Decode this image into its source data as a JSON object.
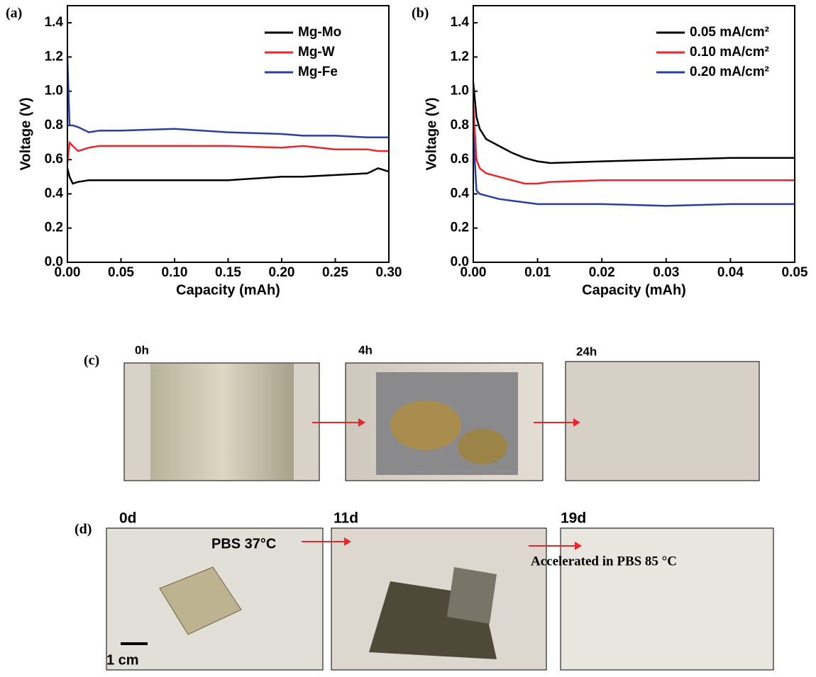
{
  "chart_data": [
    {
      "type": "line",
      "panel_label": "(a)",
      "x_label": "Capacity (mAh)",
      "y_label": "Voltage (V)",
      "x": [
        0,
        0.002,
        0.005,
        0.01,
        0.02,
        0.03,
        0.05,
        0.1,
        0.15,
        0.2,
        0.22,
        0.25,
        0.28,
        0.29,
        0.3
      ],
      "series": [
        {
          "name": "Mg-Mo",
          "color": "#000000",
          "values": [
            0.55,
            0.5,
            0.46,
            0.47,
            0.48,
            0.48,
            0.48,
            0.48,
            0.48,
            0.5,
            0.5,
            0.51,
            0.52,
            0.55,
            0.53
          ]
        },
        {
          "name": "Mg-W",
          "color": "#e8262b",
          "values": [
            0.58,
            0.7,
            0.68,
            0.65,
            0.67,
            0.68,
            0.68,
            0.68,
            0.68,
            0.67,
            0.68,
            0.66,
            0.66,
            0.65,
            0.65
          ]
        },
        {
          "name": "Mg-Fe",
          "color": "#2b3fa0",
          "values": [
            1.2,
            0.8,
            0.8,
            0.79,
            0.76,
            0.77,
            0.77,
            0.78,
            0.76,
            0.75,
            0.74,
            0.74,
            0.73,
            0.73,
            0.73
          ]
        }
      ],
      "xlim": [
        0,
        0.3
      ],
      "ylim": [
        0,
        1.5
      ],
      "xticks": [
        {
          "value": 0,
          "label": "0.00"
        },
        0.05,
        {
          "value": 0.1,
          "label": "0.10"
        },
        0.15,
        {
          "value": 0.2,
          "label": "0.20"
        },
        0.25,
        {
          "value": 0.3,
          "label": "0.30"
        }
      ],
      "yticks": [
        {
          "value": 0,
          "label": "0.0"
        },
        0.2,
        0.4,
        0.6,
        0.8,
        {
          "value": 1,
          "label": "1.0"
        },
        1.2,
        1.4
      ]
    },
    {
      "type": "line",
      "panel_label": "(b)",
      "x_label": "Capacity (mAh)",
      "y_label": "Voltage (V)",
      "x": [
        0,
        0.0005,
        0.001,
        0.002,
        0.004,
        0.006,
        0.008,
        0.01,
        0.012,
        0.02,
        0.03,
        0.04,
        0.05
      ],
      "series": [
        {
          "name": "0.05 mA/cm²",
          "color": "#000000",
          "values": [
            1.05,
            0.85,
            0.78,
            0.72,
            0.68,
            0.64,
            0.61,
            0.59,
            0.58,
            0.59,
            0.6,
            0.61,
            0.61
          ]
        },
        {
          "name": "0.10 mA/cm²",
          "color": "#e8262b",
          "values": [
            0.92,
            0.6,
            0.55,
            0.52,
            0.5,
            0.48,
            0.46,
            0.46,
            0.47,
            0.48,
            0.48,
            0.48,
            0.48
          ]
        },
        {
          "name": "0.20 mA/cm²",
          "color": "#2b3fa0",
          "values": [
            0.75,
            0.42,
            0.4,
            0.39,
            0.37,
            0.36,
            0.35,
            0.34,
            0.34,
            0.34,
            0.33,
            0.34,
            0.34
          ]
        }
      ],
      "xlim": [
        0,
        0.05
      ],
      "ylim": [
        0,
        1.5
      ],
      "xticks": [
        {
          "value": 0,
          "label": "0.00"
        },
        0.01,
        0.02,
        0.03,
        0.04,
        0.05
      ],
      "yticks": [
        {
          "value": 0,
          "label": "0.0"
        },
        0.2,
        0.4,
        0.6,
        0.8,
        {
          "value": 1,
          "label": "1.0"
        },
        1.2,
        1.4
      ]
    }
  ],
  "photos_c": {
    "panel_label": "(c)",
    "times": [
      "0h",
      "4h",
      "24h"
    ]
  },
  "photos_d": {
    "panel_label": "(d)",
    "times": [
      "0d",
      "11d",
      "19d"
    ],
    "note_1": "PBS 37°C",
    "note_2": "Accelerated in PBS 85 °C",
    "scale": "1 cm"
  }
}
